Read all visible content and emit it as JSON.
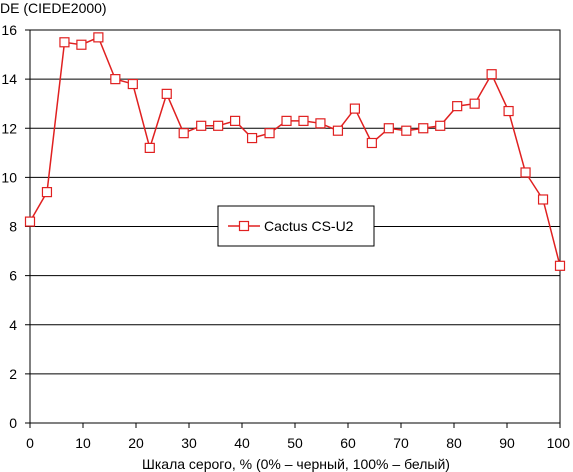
{
  "chart_data": {
    "type": "line",
    "ylabel": "DE (CIEDE2000)",
    "xlabel": "Шкала серого, % (0% – черный, 100% – белый)",
    "xlim": [
      0,
      100
    ],
    "ylim": [
      0,
      16
    ],
    "x_ticks": [
      0,
      10,
      20,
      30,
      40,
      50,
      60,
      70,
      80,
      90,
      100
    ],
    "y_ticks": [
      0,
      2,
      4,
      6,
      8,
      10,
      12,
      14,
      16
    ],
    "grid": "horizontal",
    "legend_position": "center",
    "series": [
      {
        "name": "Cactus CS-U2",
        "color": "#e02020",
        "marker": "square-hollow",
        "x": [
          0,
          3.2,
          6.5,
          9.7,
          12.9,
          16.1,
          19.4,
          22.6,
          25.8,
          29.0,
          32.3,
          35.5,
          38.7,
          41.9,
          45.2,
          48.4,
          51.6,
          54.8,
          58.1,
          61.3,
          64.5,
          67.7,
          71.0,
          74.2,
          77.4,
          80.6,
          83.9,
          87.1,
          90.3,
          93.5,
          96.8,
          100
        ],
        "y": [
          8.2,
          9.4,
          15.5,
          15.4,
          15.7,
          14.0,
          13.8,
          11.2,
          13.4,
          11.8,
          12.1,
          12.1,
          12.3,
          11.6,
          11.8,
          12.3,
          12.3,
          12.2,
          11.9,
          12.8,
          11.4,
          12.0,
          11.9,
          12.0,
          12.1,
          12.9,
          13.0,
          14.2,
          12.7,
          10.2,
          9.1,
          6.4
        ]
      }
    ]
  }
}
